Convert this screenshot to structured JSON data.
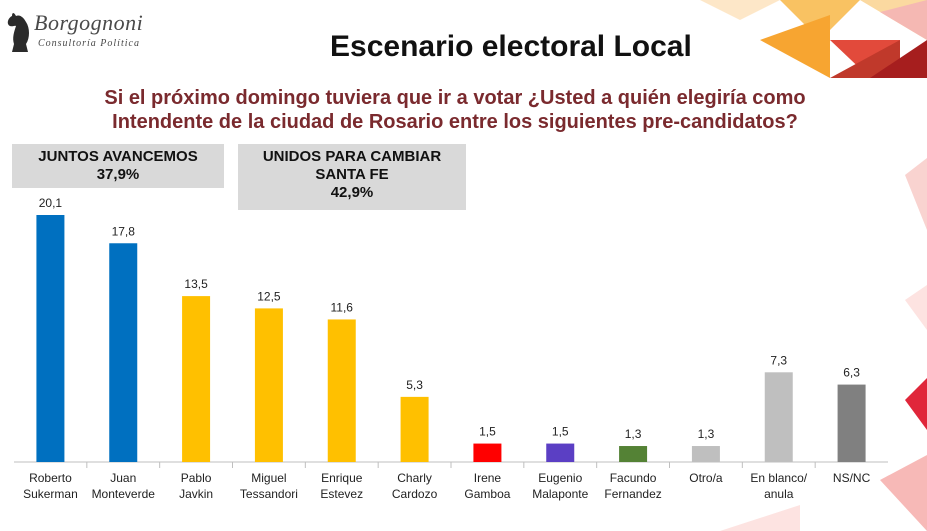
{
  "logo": {
    "brand": "Borgognoni",
    "subtitle": "Consultoría Política"
  },
  "title": "Escenario electoral Local",
  "question_line1": "Si el próximo domingo tuviera que ir a votar ¿Usted a quién elegiría como",
  "question_line2": "Intendente de la ciudad de Rosario entre los siguientes pre-candidatos?",
  "groups": [
    {
      "name": "JUNTOS AVANCEMOS",
      "total": "37,9%"
    },
    {
      "name_line1": "UNIDOS PARA CAMBIAR",
      "name_line2": "SANTA FE",
      "total": "42,9%"
    }
  ],
  "chart_data": {
    "type": "bar",
    "categories": [
      [
        "Roberto",
        "Sukerman"
      ],
      [
        "Juan",
        "Monteverde"
      ],
      [
        "Pablo",
        "Javkin"
      ],
      [
        "Miguel",
        "Tessandori"
      ],
      [
        "Enrique",
        "Estevez"
      ],
      [
        "Charly",
        "Cardozo"
      ],
      [
        "Irene",
        "Gamboa"
      ],
      [
        "Eugenio",
        "Malaponte"
      ],
      [
        "Facundo",
        "Fernandez"
      ],
      [
        "Otro/a"
      ],
      [
        "En blanco/",
        "anula"
      ],
      [
        "NS/NC"
      ]
    ],
    "values": [
      20.1,
      17.8,
      13.5,
      12.5,
      11.6,
      5.3,
      1.5,
      1.5,
      1.3,
      1.3,
      7.3,
      6.3
    ],
    "labels": [
      "20,1",
      "17,8",
      "13,5",
      "12,5",
      "11,6",
      "5,3",
      "1,5",
      "1,5",
      "1,3",
      "1,3",
      "7,3",
      "6,3"
    ],
    "colors": [
      "#0070c0",
      "#0070c0",
      "#ffc000",
      "#ffc000",
      "#ffc000",
      "#ffc000",
      "#ff0000",
      "#5b3fc4",
      "#548235",
      "#bfbfbf",
      "#bfbfbf",
      "#808080"
    ],
    "ylim": [
      0,
      22
    ]
  }
}
